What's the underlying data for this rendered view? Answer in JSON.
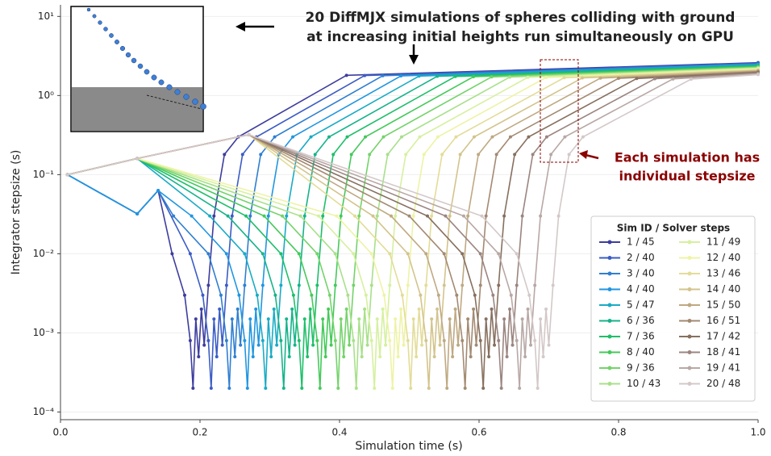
{
  "chart_data": {
    "type": "line",
    "title": [
      "20 DiffMJX simulations of spheres colliding with ground",
      "at increasing initial heights run simultaneously on GPU"
    ],
    "annotation": [
      "Each simulation has",
      "individual stepsize"
    ],
    "xlabel": "Simulation time (s)",
    "ylabel": "Integrator stepsize (s)",
    "legend_title": "Sim ID / Solver steps",
    "legend": "lower right",
    "log_y": true,
    "grid": true,
    "xlim": [
      0,
      1
    ],
    "ylim": [
      8e-05,
      14
    ],
    "xticks": [
      {
        "value": 0,
        "label": "0.0"
      },
      0.2,
      0.4,
      0.6,
      0.8,
      {
        "value": 1,
        "label": "1.0"
      }
    ],
    "yticks": [
      {
        "value": 10,
        "label": "10¹"
      },
      {
        "value": 1,
        "label": "10⁰"
      },
      {
        "value": 0.1,
        "label": "10⁻¹"
      },
      {
        "value": 0.01,
        "label": "10⁻²"
      },
      {
        "value": 0.001,
        "label": "10⁻³"
      },
      {
        "value": 0.0001,
        "label": "10⁻⁴"
      }
    ],
    "series": [
      {
        "name": "1 / 45",
        "color": "#3d3d9e",
        "x": [
          0.01,
          0.11,
          0.14,
          0.16,
          0.178,
          0.186,
          0.19,
          0.194,
          0.198,
          0.202,
          0.206,
          0.212,
          0.22,
          0.235,
          0.255,
          0.41,
          1.0
        ],
        "values": [
          0.1,
          0.032,
          0.063,
          0.01,
          0.003,
          0.0008,
          0.0002,
          0.0015,
          0.0005,
          0.002,
          0.0007,
          0.004,
          0.03,
          0.18,
          0.3,
          1.8,
          2.6
        ]
      },
      {
        "name": "2 / 40",
        "color": "#3b5cc4",
        "x": [
          0.01,
          0.11,
          0.14,
          0.186,
          0.204,
          0.212,
          0.216,
          0.22,
          0.224,
          0.228,
          0.232,
          0.238,
          0.246,
          0.261,
          0.281,
          0.436,
          1.0
        ],
        "values": [
          0.1,
          0.032,
          0.063,
          0.01,
          0.003,
          0.0008,
          0.0002,
          0.0015,
          0.0005,
          0.002,
          0.0007,
          0.004,
          0.03,
          0.18,
          0.3,
          1.79,
          2.56
        ]
      },
      {
        "name": "3 / 40",
        "color": "#2f7fd0",
        "x": [
          0.01,
          0.11,
          0.14,
          0.162,
          0.212,
          0.23,
          0.238,
          0.242,
          0.246,
          0.25,
          0.254,
          0.258,
          0.264,
          0.272,
          0.287,
          0.307,
          0.462,
          1.0
        ],
        "values": [
          0.1,
          0.032,
          0.063,
          0.03,
          0.01,
          0.003,
          0.0008,
          0.0002,
          0.0015,
          0.0005,
          0.002,
          0.0007,
          0.004,
          0.03,
          0.18,
          0.3,
          1.78,
          2.52
        ]
      },
      {
        "name": "4 / 40",
        "color": "#2196e0",
        "x": [
          0.01,
          0.11,
          0.14,
          0.188,
          0.238,
          0.256,
          0.264,
          0.268,
          0.272,
          0.276,
          0.28,
          0.284,
          0.29,
          0.298,
          0.313,
          0.333,
          0.488,
          1.0
        ],
        "values": [
          0.1,
          0.032,
          0.063,
          0.03,
          0.01,
          0.003,
          0.0008,
          0.0002,
          0.0015,
          0.0005,
          0.002,
          0.0007,
          0.004,
          0.03,
          0.18,
          0.3,
          1.77,
          2.48
        ]
      },
      {
        "name": "5 / 47",
        "color": "#1aabc4",
        "x": [
          0.01,
          0.11,
          0.214,
          0.264,
          0.282,
          0.29,
          0.294,
          0.298,
          0.302,
          0.306,
          0.31,
          0.316,
          0.324,
          0.339,
          0.359,
          0.514,
          1.0
        ],
        "values": [
          0.1,
          0.16,
          0.03,
          0.01,
          0.003,
          0.0008,
          0.0002,
          0.0015,
          0.0005,
          0.002,
          0.0007,
          0.004,
          0.03,
          0.18,
          0.3,
          1.76,
          2.44
        ]
      },
      {
        "name": "6 / 36",
        "color": "#17b38a",
        "x": [
          0.01,
          0.11,
          0.24,
          0.29,
          0.308,
          0.316,
          0.32,
          0.324,
          0.328,
          0.332,
          0.336,
          0.342,
          0.35,
          0.365,
          0.385,
          0.54,
          1.0
        ],
        "values": [
          0.1,
          0.16,
          0.03,
          0.01,
          0.003,
          0.0008,
          0.0002,
          0.0015,
          0.0005,
          0.002,
          0.0007,
          0.004,
          0.03,
          0.18,
          0.3,
          1.75,
          2.4
        ]
      },
      {
        "name": "7 / 36",
        "color": "#1fbf6a",
        "x": [
          0.01,
          0.11,
          0.266,
          0.316,
          0.334,
          0.342,
          0.346,
          0.35,
          0.354,
          0.358,
          0.362,
          0.368,
          0.376,
          0.391,
          0.411,
          0.566,
          1.0
        ],
        "values": [
          0.1,
          0.16,
          0.03,
          0.01,
          0.003,
          0.0008,
          0.0002,
          0.0015,
          0.0005,
          0.002,
          0.0007,
          0.004,
          0.03,
          0.18,
          0.3,
          1.74,
          2.36
        ]
      },
      {
        "name": "8 / 40",
        "color": "#45c95a",
        "x": [
          0.01,
          0.11,
          0.292,
          0.342,
          0.36,
          0.368,
          0.372,
          0.376,
          0.38,
          0.384,
          0.388,
          0.394,
          0.402,
          0.417,
          0.437,
          0.592,
          1.0
        ],
        "values": [
          0.1,
          0.16,
          0.03,
          0.01,
          0.003,
          0.0008,
          0.0002,
          0.0015,
          0.0005,
          0.002,
          0.0007,
          0.004,
          0.03,
          0.18,
          0.3,
          1.73,
          2.32
        ]
      },
      {
        "name": "9 / 36",
        "color": "#74d36a",
        "x": [
          0.01,
          0.11,
          0.318,
          0.368,
          0.386,
          0.394,
          0.398,
          0.402,
          0.406,
          0.41,
          0.414,
          0.42,
          0.428,
          0.443,
          0.463,
          0.618,
          1.0
        ],
        "values": [
          0.1,
          0.16,
          0.03,
          0.01,
          0.003,
          0.0008,
          0.0002,
          0.0015,
          0.0005,
          0.002,
          0.0007,
          0.004,
          0.03,
          0.18,
          0.3,
          1.72,
          2.28
        ]
      },
      {
        "name": "10 / 43",
        "color": "#a8e08a",
        "x": [
          0.01,
          0.11,
          0.344,
          0.394,
          0.412,
          0.42,
          0.424,
          0.428,
          0.432,
          0.436,
          0.44,
          0.446,
          0.454,
          0.469,
          0.489,
          0.644,
          1.0
        ],
        "values": [
          0.1,
          0.16,
          0.03,
          0.01,
          0.003,
          0.0008,
          0.0002,
          0.0015,
          0.0005,
          0.002,
          0.0007,
          0.004,
          0.03,
          0.18,
          0.3,
          1.71,
          2.24
        ]
      },
      {
        "name": "11 / 49",
        "color": "#d6f0a0",
        "x": [
          0.01,
          0.11,
          0.37,
          0.42,
          0.438,
          0.446,
          0.45,
          0.454,
          0.458,
          0.462,
          0.466,
          0.472,
          0.48,
          0.495,
          0.515,
          0.67,
          1.0
        ],
        "values": [
          0.1,
          0.16,
          0.03,
          0.01,
          0.003,
          0.0008,
          0.0002,
          0.0015,
          0.0005,
          0.002,
          0.0007,
          0.004,
          0.03,
          0.18,
          0.3,
          1.7,
          2.2
        ]
      },
      {
        "name": "12 / 40",
        "color": "#eef3a6",
        "x": [
          0.01,
          0.11,
          0.396,
          0.446,
          0.464,
          0.472,
          0.476,
          0.48,
          0.484,
          0.488,
          0.492,
          0.498,
          0.506,
          0.521,
          0.541,
          0.696,
          1.0
        ],
        "values": [
          0.1,
          0.16,
          0.03,
          0.01,
          0.003,
          0.0008,
          0.0002,
          0.0015,
          0.0005,
          0.002,
          0.0007,
          0.004,
          0.03,
          0.18,
          0.3,
          1.69,
          2.16
        ]
      },
      {
        "name": "13 / 46",
        "color": "#e3dc98",
        "x": [
          0.01,
          0.11,
          0.27,
          0.422,
          0.472,
          0.49,
          0.498,
          0.502,
          0.506,
          0.51,
          0.514,
          0.518,
          0.524,
          0.532,
          0.547,
          0.567,
          0.722,
          1.0
        ],
        "values": [
          0.1,
          0.16,
          0.32,
          0.03,
          0.01,
          0.003,
          0.0008,
          0.0002,
          0.0015,
          0.0005,
          0.002,
          0.0007,
          0.004,
          0.03,
          0.18,
          0.3,
          1.68,
          2.12
        ]
      },
      {
        "name": "14 / 40",
        "color": "#d3c48c",
        "x": [
          0.01,
          0.11,
          0.27,
          0.448,
          0.498,
          0.516,
          0.524,
          0.528,
          0.532,
          0.536,
          0.54,
          0.544,
          0.55,
          0.558,
          0.573,
          0.593,
          0.748,
          1.0
        ],
        "values": [
          0.1,
          0.16,
          0.32,
          0.03,
          0.01,
          0.003,
          0.0008,
          0.0002,
          0.0015,
          0.0005,
          0.002,
          0.0007,
          0.004,
          0.03,
          0.18,
          0.3,
          1.67,
          2.08
        ]
      },
      {
        "name": "15 / 50",
        "color": "#bfa982",
        "x": [
          0.01,
          0.11,
          0.27,
          0.474,
          0.524,
          0.542,
          0.55,
          0.554,
          0.558,
          0.562,
          0.566,
          0.57,
          0.576,
          0.584,
          0.599,
          0.619,
          0.774,
          1.0
        ],
        "values": [
          0.1,
          0.16,
          0.32,
          0.03,
          0.01,
          0.003,
          0.0008,
          0.0002,
          0.0015,
          0.0005,
          0.002,
          0.0007,
          0.004,
          0.03,
          0.18,
          0.3,
          1.66,
          2.04
        ]
      },
      {
        "name": "16 / 51",
        "color": "#a38a72",
        "x": [
          0.01,
          0.11,
          0.27,
          0.5,
          0.55,
          0.568,
          0.576,
          0.58,
          0.584,
          0.588,
          0.592,
          0.596,
          0.602,
          0.61,
          0.625,
          0.645,
          0.8,
          1.0
        ],
        "values": [
          0.1,
          0.16,
          0.32,
          0.03,
          0.01,
          0.003,
          0.0008,
          0.0002,
          0.0015,
          0.0005,
          0.002,
          0.0007,
          0.004,
          0.03,
          0.18,
          0.3,
          1.65,
          2.0
        ]
      },
      {
        "name": "17 / 42",
        "color": "#87705f",
        "x": [
          0.01,
          0.11,
          0.27,
          0.526,
          0.576,
          0.594,
          0.602,
          0.606,
          0.61,
          0.614,
          0.618,
          0.622,
          0.628,
          0.636,
          0.651,
          0.671,
          0.826,
          1.0
        ],
        "values": [
          0.1,
          0.16,
          0.32,
          0.03,
          0.01,
          0.003,
          0.0008,
          0.0002,
          0.0015,
          0.0005,
          0.002,
          0.0007,
          0.004,
          0.03,
          0.18,
          0.3,
          1.64,
          1.96
        ]
      },
      {
        "name": "18 / 41",
        "color": "#9b8580",
        "x": [
          0.01,
          0.11,
          0.27,
          0.552,
          0.602,
          0.62,
          0.628,
          0.632,
          0.636,
          0.64,
          0.644,
          0.648,
          0.654,
          0.662,
          0.677,
          0.697,
          0.852,
          1.0
        ],
        "values": [
          0.1,
          0.16,
          0.32,
          0.03,
          0.01,
          0.003,
          0.0008,
          0.0002,
          0.0015,
          0.0005,
          0.002,
          0.0007,
          0.004,
          0.03,
          0.18,
          0.3,
          1.63,
          1.92
        ]
      },
      {
        "name": "19 / 41",
        "color": "#b8a8a5",
        "x": [
          0.01,
          0.11,
          0.27,
          0.578,
          0.628,
          0.646,
          0.654,
          0.658,
          0.662,
          0.666,
          0.67,
          0.674,
          0.68,
          0.688,
          0.703,
          0.723,
          0.878,
          1.0
        ],
        "values": [
          0.1,
          0.16,
          0.32,
          0.03,
          0.01,
          0.003,
          0.0008,
          0.0002,
          0.0015,
          0.0005,
          0.002,
          0.0007,
          0.004,
          0.03,
          0.18,
          0.3,
          1.62,
          1.88
        ]
      },
      {
        "name": "20 / 48",
        "color": "#d4c8c8",
        "x": [
          0.01,
          0.11,
          0.27,
          0.604,
          0.654,
          0.672,
          0.68,
          0.684,
          0.688,
          0.692,
          0.696,
          0.7,
          0.706,
          0.714,
          0.729,
          0.749,
          0.904,
          1.0
        ],
        "values": [
          0.1,
          0.16,
          0.32,
          0.03,
          0.01,
          0.003,
          0.0008,
          0.0002,
          0.0015,
          0.0005,
          0.002,
          0.0007,
          0.004,
          0.03,
          0.18,
          0.3,
          1.61,
          1.84
        ]
      }
    ]
  }
}
